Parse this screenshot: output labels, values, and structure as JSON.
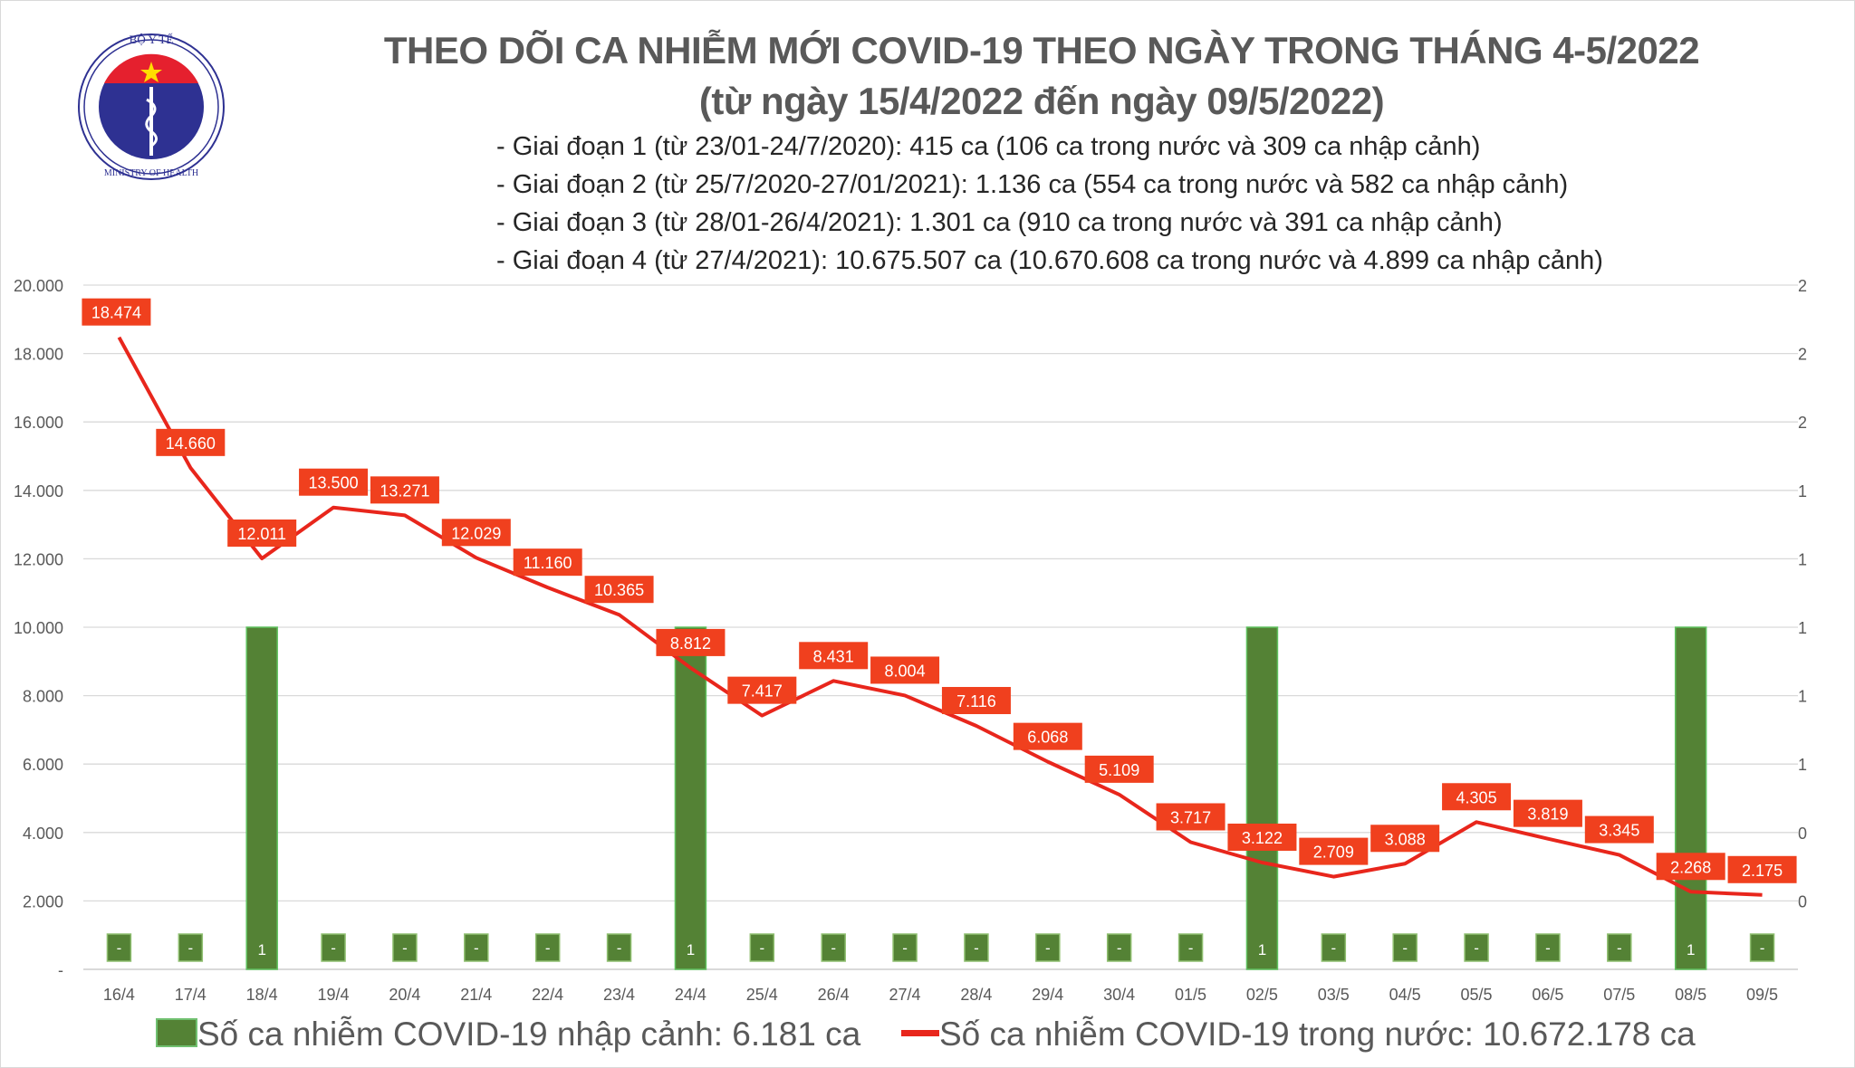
{
  "logo": {
    "top_text": "BỘ Y TẾ",
    "bottom_text": "MINISTRY OF HEALTH"
  },
  "header": {
    "title": "THEO DÕI CA NHIỄM MỚI COVID-19 THEO NGÀY TRONG THÁNG 4-5/2022",
    "subtitle": "(từ ngày 15/4/2022 đến ngày 09/5/2022)",
    "phases": [
      "- Giai đoạn 1 (từ 23/01-24/7/2020): 415 ca (106 ca trong nước và 309 ca nhập cảnh)",
      "- Giai đoạn 2 (từ 25/7/2020-27/01/2021): 1.136 ca (554 ca trong nước và 582 ca nhập cảnh)",
      "- Giai đoạn 3 (từ 28/01-26/4/2021): 1.301 ca (910 ca trong nước và 391 ca nhập cảnh)",
      "- Giai đoạn 4 (từ 27/4/2021): 10.675.507 ca (10.670.608 ca trong nước và 4.899 ca nhập cảnh)"
    ]
  },
  "chart_data": {
    "type": "bar+line",
    "categories": [
      "16/4",
      "17/4",
      "18/4",
      "19/4",
      "20/4",
      "21/4",
      "22/4",
      "23/4",
      "24/4",
      "25/4",
      "26/4",
      "27/4",
      "28/4",
      "29/4",
      "30/4",
      "01/5",
      "02/5",
      "03/5",
      "04/5",
      "05/5",
      "06/5",
      "07/5",
      "08/5",
      "09/5"
    ],
    "series": [
      {
        "name": "Số ca nhiễm COVID-19 nhập cảnh: 6.181 ca",
        "type": "bar",
        "axis": "right",
        "color": "#548235",
        "values": [
          0,
          0,
          1,
          0,
          0,
          0,
          0,
          0,
          1,
          0,
          0,
          0,
          0,
          0,
          0,
          0,
          1,
          0,
          0,
          0,
          0,
          0,
          1,
          0
        ],
        "labels": [
          "-",
          "-",
          "1",
          "-",
          "-",
          "-",
          "-",
          "-",
          "1",
          "-",
          "-",
          "-",
          "-",
          "-",
          "-",
          "-",
          "1",
          "-",
          "-",
          "-",
          "-",
          "-",
          "1",
          "-"
        ]
      },
      {
        "name": "Số ca nhiễm COVID-19 trong nước: 10.672.178 ca",
        "type": "line",
        "axis": "left",
        "color": "#e8261c",
        "values": [
          18474,
          14660,
          12011,
          13500,
          13271,
          12029,
          11160,
          10365,
          8812,
          7417,
          8431,
          8004,
          7116,
          6068,
          5109,
          3717,
          3122,
          2709,
          3088,
          4305,
          3819,
          3345,
          2268,
          2175
        ],
        "labels": [
          "18.474",
          "14.660",
          "12.011",
          "13.500",
          "13.271",
          "12.029",
          "11.160",
          "10.365",
          "8.812",
          "7.417",
          "8.431",
          "8.004",
          "7.116",
          "6.068",
          "5.109",
          "3.717",
          "3.122",
          "2.709",
          "3.088",
          "4.305",
          "3.819",
          "3.345",
          "2.268",
          "2.175"
        ]
      }
    ],
    "y_left": {
      "range": [
        0,
        20000
      ],
      "ticks": [
        "-",
        "2.000",
        "4.000",
        "6.000",
        "8.000",
        "10.000",
        "12.000",
        "14.000",
        "16.000",
        "18.000",
        "20.000"
      ]
    },
    "y_right": {
      "range": [
        0,
        2
      ],
      "ticks": [
        "0",
        "0",
        "1",
        "1",
        "1",
        "1",
        "1",
        "2",
        "2",
        "2"
      ]
    },
    "grid": true,
    "legend_position": "bottom",
    "label_box_color": "#f0401e",
    "grid_color": "#d9d9d9"
  }
}
